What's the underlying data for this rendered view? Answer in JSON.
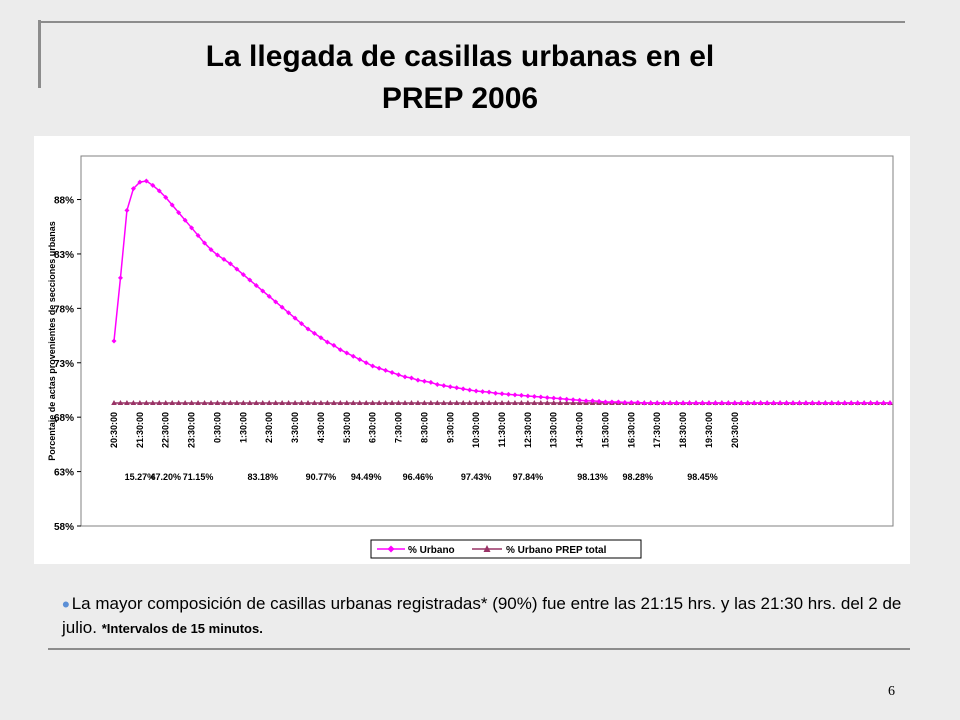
{
  "slide": {
    "title_line1": "La llegada de casillas urbanas en el",
    "title_line2": "PREP 2006",
    "bullet_text": "La mayor composición de casillas urbanas registradas* (90%) fue entre las 21:15 hrs. y las 21:30 hrs. del 2 de julio.",
    "bullet_note": "*Intervalos de 15 minutos.",
    "page_number": "6"
  },
  "chart_data": {
    "type": "line",
    "title": "",
    "ylabel": "Porcentaje de actas provenientes de secciones urbanas",
    "xlabel": "",
    "ylim": [
      58,
      92
    ],
    "yticks": [
      58,
      63,
      68,
      73,
      78,
      83,
      88
    ],
    "ytick_labels": [
      "58%",
      "63%",
      "68%",
      "73%",
      "78%",
      "83%",
      "88%"
    ],
    "x_start": "20:30:00",
    "x_interval_minutes": 15,
    "x_tick_labels": [
      "20:30:00",
      "21:30:00",
      "22:30:00",
      "23:30:00",
      "0:30:00",
      "1:30:00",
      "2:30:00",
      "3:30:00",
      "4:30:00",
      "5:30:00",
      "6:30:00",
      "7:30:00",
      "8:30:00",
      "9:30:00",
      "10:30:00",
      "11:30:00",
      "12:30:00",
      "13:30:00",
      "14:30:00",
      "15:30:00",
      "16:30:00",
      "17:30:00",
      "18:30:00",
      "19:30:00",
      "20:30:00"
    ],
    "grid": false,
    "legend_position": "bottom",
    "annotations": [
      {
        "label": "15.27%",
        "x": "21:30:00"
      },
      {
        "label": "47.20%",
        "x": "22:30:00"
      },
      {
        "label": "71.15%",
        "x": "23:45:00"
      },
      {
        "label": "83.18%",
        "x": "2:15:00"
      },
      {
        "label": "90.77%",
        "x": "4:30:00"
      },
      {
        "label": "94.49%",
        "x": "6:15:00"
      },
      {
        "label": "96.46%",
        "x": "8:15:00"
      },
      {
        "label": "97.43%",
        "x": "10:30:00"
      },
      {
        "label": "97.84%",
        "x": "12:30:00"
      },
      {
        "label": "98.13%",
        "x": "15:00:00"
      },
      {
        "label": "98.28%",
        "x": "16:45:00"
      },
      {
        "label": "98.45%",
        "x": "19:15:00"
      }
    ],
    "series": [
      {
        "name": "% Urbano",
        "color": "#ff00ff",
        "marker": "diamond",
        "values": [
          75.0,
          80.8,
          87.0,
          89.0,
          89.6,
          89.7,
          89.3,
          88.8,
          88.2,
          87.5,
          86.8,
          86.1,
          85.4,
          84.7,
          84.0,
          83.4,
          82.9,
          82.5,
          82.1,
          81.6,
          81.1,
          80.6,
          80.1,
          79.6,
          79.1,
          78.6,
          78.1,
          77.6,
          77.1,
          76.6,
          76.1,
          75.7,
          75.3,
          74.9,
          74.6,
          74.2,
          73.9,
          73.6,
          73.3,
          73.0,
          72.7,
          72.5,
          72.3,
          72.1,
          71.9,
          71.7,
          71.6,
          71.4,
          71.3,
          71.2,
          71.0,
          70.9,
          70.8,
          70.7,
          70.6,
          70.5,
          70.4,
          70.35,
          70.3,
          70.2,
          70.15,
          70.1,
          70.05,
          70.0,
          69.95,
          69.9,
          69.85,
          69.8,
          69.75,
          69.7,
          69.65,
          69.6,
          69.55,
          69.5,
          69.5,
          69.45,
          69.4,
          69.4,
          69.4,
          69.35,
          69.35,
          69.35,
          69.3,
          69.3,
          69.3,
          69.3,
          69.3,
          69.3,
          69.3,
          69.3,
          69.3,
          69.3,
          69.3,
          69.3,
          69.3,
          69.3,
          69.3,
          69.3,
          69.3,
          69.3,
          69.3,
          69.3,
          69.3,
          69.3,
          69.3,
          69.3,
          69.3,
          69.3,
          69.3,
          69.3,
          69.3,
          69.3,
          69.3,
          69.3,
          69.3,
          69.3,
          69.3,
          69.3,
          69.3,
          69.3,
          69.3
        ]
      },
      {
        "name": "% Urbano PREP total",
        "color": "#993366",
        "marker": "triangle",
        "constant_value": 69.3
      }
    ]
  }
}
